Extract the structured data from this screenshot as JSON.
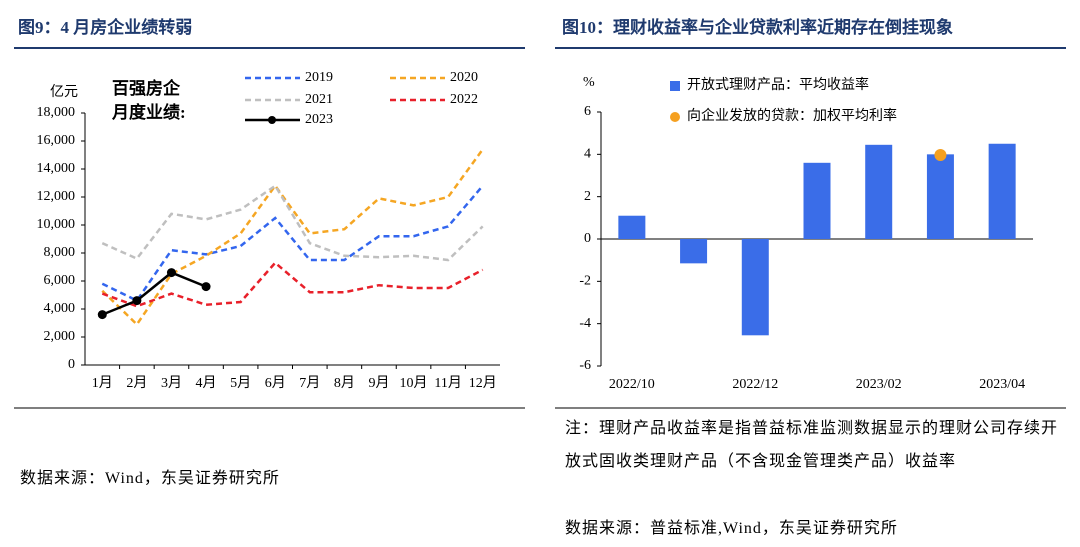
{
  "chart_data": [
    {
      "type": "line",
      "title": "图9：4 月房企业绩转弱",
      "y_label": "亿元",
      "annotation": [
        "百强房企",
        "月度业绩:"
      ],
      "categories": [
        "1月",
        "2月",
        "3月",
        "4月",
        "5月",
        "6月",
        "7月",
        "8月",
        "9月",
        "10月",
        "11月",
        "12月"
      ],
      "series": [
        {
          "name": "2019",
          "color": "#3366ee",
          "dash": true,
          "values": [
            5800,
            4600,
            8200,
            7900,
            8500,
            10500,
            7500,
            7500,
            9200,
            9200,
            9900,
            12800
          ]
        },
        {
          "name": "2020",
          "color": "#f5a623",
          "dash": true,
          "values": [
            5300,
            2900,
            6500,
            7800,
            9400,
            12800,
            9400,
            9700,
            11900,
            11400,
            12000,
            15400
          ]
        },
        {
          "name": "2021",
          "color": "#bfbfbf",
          "dash": true,
          "values": [
            8700,
            7600,
            10800,
            10400,
            11100,
            12800,
            8700,
            7800,
            7700,
            7800,
            7500,
            9900
          ]
        },
        {
          "name": "2022",
          "color": "#e8202a",
          "dash": true,
          "values": [
            5100,
            4200,
            5100,
            4300,
            4500,
            7300,
            5200,
            5200,
            5700,
            5500,
            5500,
            6800
          ]
        },
        {
          "name": "2023",
          "color": "#000000",
          "dash": false,
          "markers": true,
          "values": [
            3600,
            4600,
            6600,
            5600,
            null,
            null,
            null,
            null,
            null,
            null,
            null,
            null
          ]
        }
      ],
      "ylim": [
        0,
        18000
      ],
      "yticks": [
        0,
        {
          "value": 2000,
          "label": "2,000"
        },
        {
          "value": 4000,
          "label": "4,000"
        },
        {
          "value": 6000,
          "label": "6,000"
        },
        {
          "value": 8000,
          "label": "8,000"
        },
        {
          "value": 10000,
          "label": "10,000"
        },
        {
          "value": 12000,
          "label": "12,000"
        },
        {
          "value": 14000,
          "label": "14,000"
        },
        {
          "value": 16000,
          "label": "16,000"
        },
        {
          "value": 18000,
          "label": "18,000"
        }
      ],
      "source": "数据来源：Wind，东吴证券研究所"
    },
    {
      "type": "bar",
      "title": "图10：理财收益率与企业贷款利率近期存在倒挂现象",
      "y_label": "%",
      "categories": [
        "2022/10",
        null,
        "2022/12",
        null,
        "2023/02",
        null,
        "2023/04"
      ],
      "series": [
        {
          "name": "开放式理财产品：平均收益率",
          "color": "#3a6de8",
          "values": [
            1.1,
            -1.15,
            -4.55,
            3.6,
            4.45,
            4.0,
            4.5
          ]
        },
        {
          "name": "向企业发放的贷款：加权平均利率",
          "color": "#f5a020",
          "marker": "dot",
          "values": [
            null,
            null,
            null,
            null,
            null,
            3.97,
            null
          ]
        }
      ],
      "ylim": [
        -6,
        6
      ],
      "yticks": [
        -6,
        -4,
        -2,
        0,
        2,
        4,
        6
      ],
      "note": "注：理财产品收益率是指普益标准监测数据显示的理财公司存续开放式固收类理财产品（不含现金管理类产品）收益率",
      "source": "数据来源：普益标准,Wind，东吴证券研究所"
    }
  ]
}
